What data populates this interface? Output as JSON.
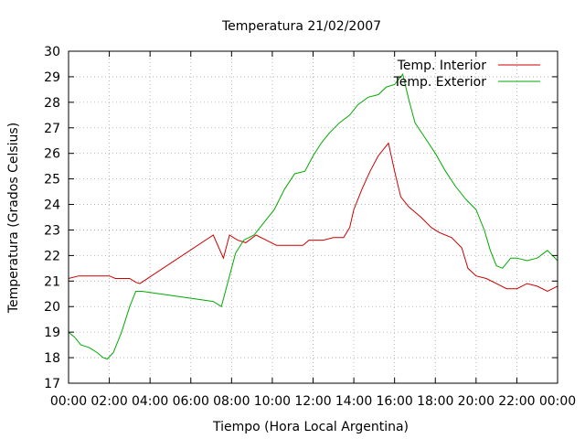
{
  "chart_data": {
    "type": "line",
    "title": "Temperatura 21/02/2007",
    "xlabel": "Tiempo (Hora Local Argentina)",
    "ylabel": "Temperatura (Grados Celsius)",
    "xlim": [
      0,
      24
    ],
    "ylim": [
      17,
      30
    ],
    "x_ticks": [
      "00:00",
      "02:00",
      "04:00",
      "06:00",
      "08:00",
      "10:00",
      "12:00",
      "14:00",
      "16:00",
      "18:00",
      "20:00",
      "22:00",
      "00:00"
    ],
    "y_ticks": [
      17,
      18,
      19,
      20,
      21,
      22,
      23,
      24,
      25,
      26,
      27,
      28,
      29,
      30
    ],
    "grid": true,
    "legend_position": "top-right",
    "series": [
      {
        "name": "Temp. Interior",
        "color": "#cc0000",
        "points": [
          [
            0.0,
            21.1
          ],
          [
            0.5,
            21.2
          ],
          [
            1.0,
            21.2
          ],
          [
            1.5,
            21.2
          ],
          [
            2.0,
            21.2
          ],
          [
            2.3,
            21.1
          ],
          [
            2.6,
            21.1
          ],
          [
            3.0,
            21.1
          ],
          [
            3.3,
            20.95
          ],
          [
            3.5,
            20.9
          ],
          [
            7.1,
            22.8
          ],
          [
            7.6,
            21.9
          ],
          [
            7.9,
            22.8
          ],
          [
            8.3,
            22.6
          ],
          [
            8.7,
            22.5
          ],
          [
            9.2,
            22.8
          ],
          [
            9.7,
            22.6
          ],
          [
            10.2,
            22.4
          ],
          [
            10.8,
            22.4
          ],
          [
            11.5,
            22.4
          ],
          [
            11.8,
            22.6
          ],
          [
            12.5,
            22.6
          ],
          [
            13.0,
            22.7
          ],
          [
            13.5,
            22.7
          ],
          [
            13.8,
            23.1
          ],
          [
            14.0,
            23.8
          ],
          [
            14.4,
            24.6
          ],
          [
            14.8,
            25.3
          ],
          [
            15.2,
            25.9
          ],
          [
            15.5,
            26.2
          ],
          [
            15.7,
            26.4
          ],
          [
            16.0,
            25.3
          ],
          [
            16.3,
            24.3
          ],
          [
            16.7,
            23.9
          ],
          [
            17.3,
            23.5
          ],
          [
            17.8,
            23.1
          ],
          [
            18.2,
            22.9
          ],
          [
            18.8,
            22.7
          ],
          [
            19.3,
            22.3
          ],
          [
            19.6,
            21.5
          ],
          [
            20.0,
            21.2
          ],
          [
            20.5,
            21.1
          ],
          [
            21.0,
            20.9
          ],
          [
            21.5,
            20.7
          ],
          [
            22.0,
            20.7
          ],
          [
            22.5,
            20.9
          ],
          [
            23.0,
            20.8
          ],
          [
            23.5,
            20.6
          ],
          [
            24.0,
            20.8
          ]
        ]
      },
      {
        "name": "Temp. Exterior",
        "color": "#00aa00",
        "points": [
          [
            0.0,
            19.0
          ],
          [
            0.3,
            18.8
          ],
          [
            0.6,
            18.5
          ],
          [
            1.0,
            18.4
          ],
          [
            1.4,
            18.2
          ],
          [
            1.7,
            18.0
          ],
          [
            1.9,
            17.95
          ],
          [
            2.2,
            18.2
          ],
          [
            2.6,
            19.0
          ],
          [
            3.0,
            20.0
          ],
          [
            3.3,
            20.6
          ],
          [
            3.6,
            20.6
          ],
          [
            7.1,
            20.2
          ],
          [
            7.5,
            20.0
          ],
          [
            7.9,
            21.2
          ],
          [
            8.2,
            22.1
          ],
          [
            8.6,
            22.6
          ],
          [
            9.1,
            22.8
          ],
          [
            9.6,
            23.3
          ],
          [
            10.1,
            23.8
          ],
          [
            10.6,
            24.6
          ],
          [
            11.1,
            25.2
          ],
          [
            11.6,
            25.3
          ],
          [
            12.0,
            25.9
          ],
          [
            12.4,
            26.4
          ],
          [
            12.8,
            26.8
          ],
          [
            13.3,
            27.2
          ],
          [
            13.8,
            27.5
          ],
          [
            14.2,
            27.9
          ],
          [
            14.7,
            28.2
          ],
          [
            15.2,
            28.3
          ],
          [
            15.6,
            28.6
          ],
          [
            16.0,
            28.7
          ],
          [
            16.4,
            29.1
          ],
          [
            16.7,
            28.1
          ],
          [
            17.0,
            27.2
          ],
          [
            17.5,
            26.6
          ],
          [
            18.0,
            26.0
          ],
          [
            18.5,
            25.3
          ],
          [
            19.0,
            24.7
          ],
          [
            19.5,
            24.2
          ],
          [
            20.0,
            23.8
          ],
          [
            20.4,
            23.0
          ],
          [
            20.7,
            22.2
          ],
          [
            21.0,
            21.6
          ],
          [
            21.3,
            21.5
          ],
          [
            21.7,
            21.9
          ],
          [
            22.0,
            21.9
          ],
          [
            22.5,
            21.8
          ],
          [
            23.0,
            21.9
          ],
          [
            23.5,
            22.2
          ],
          [
            24.0,
            21.8
          ]
        ]
      }
    ]
  }
}
